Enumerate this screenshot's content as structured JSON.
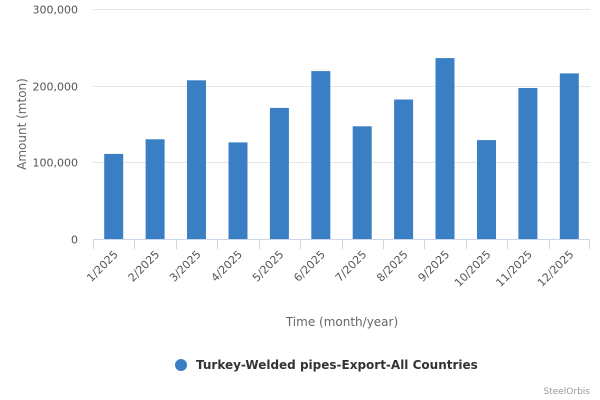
{
  "chart_data": {
    "type": "bar",
    "categories": [
      "1/2025",
      "2/2025",
      "3/2025",
      "4/2025",
      "5/2025",
      "6/2025",
      "7/2025",
      "8/2025",
      "9/2025",
      "10/2025",
      "11/2025",
      "12/2025"
    ],
    "series": [
      {
        "name": "Turkey-Welded pipes-Export-All Countries",
        "values": [
          111000,
          130000,
          207000,
          126000,
          171000,
          219000,
          147000,
          182000,
          236000,
          129000,
          197000,
          216000
        ],
        "color": "#3a7fc4"
      }
    ],
    "xlabel": "Time (month/year)",
    "ylabel": "Amount (mton)",
    "ylim": [
      0,
      300000
    ],
    "yticks": [
      0,
      100000,
      200000,
      300000
    ],
    "ytick_labels": [
      "0",
      "100,000",
      "200,000",
      "300,000"
    ],
    "grid": true,
    "legend": "bottom-center"
  },
  "credit": "SteelOrbis"
}
